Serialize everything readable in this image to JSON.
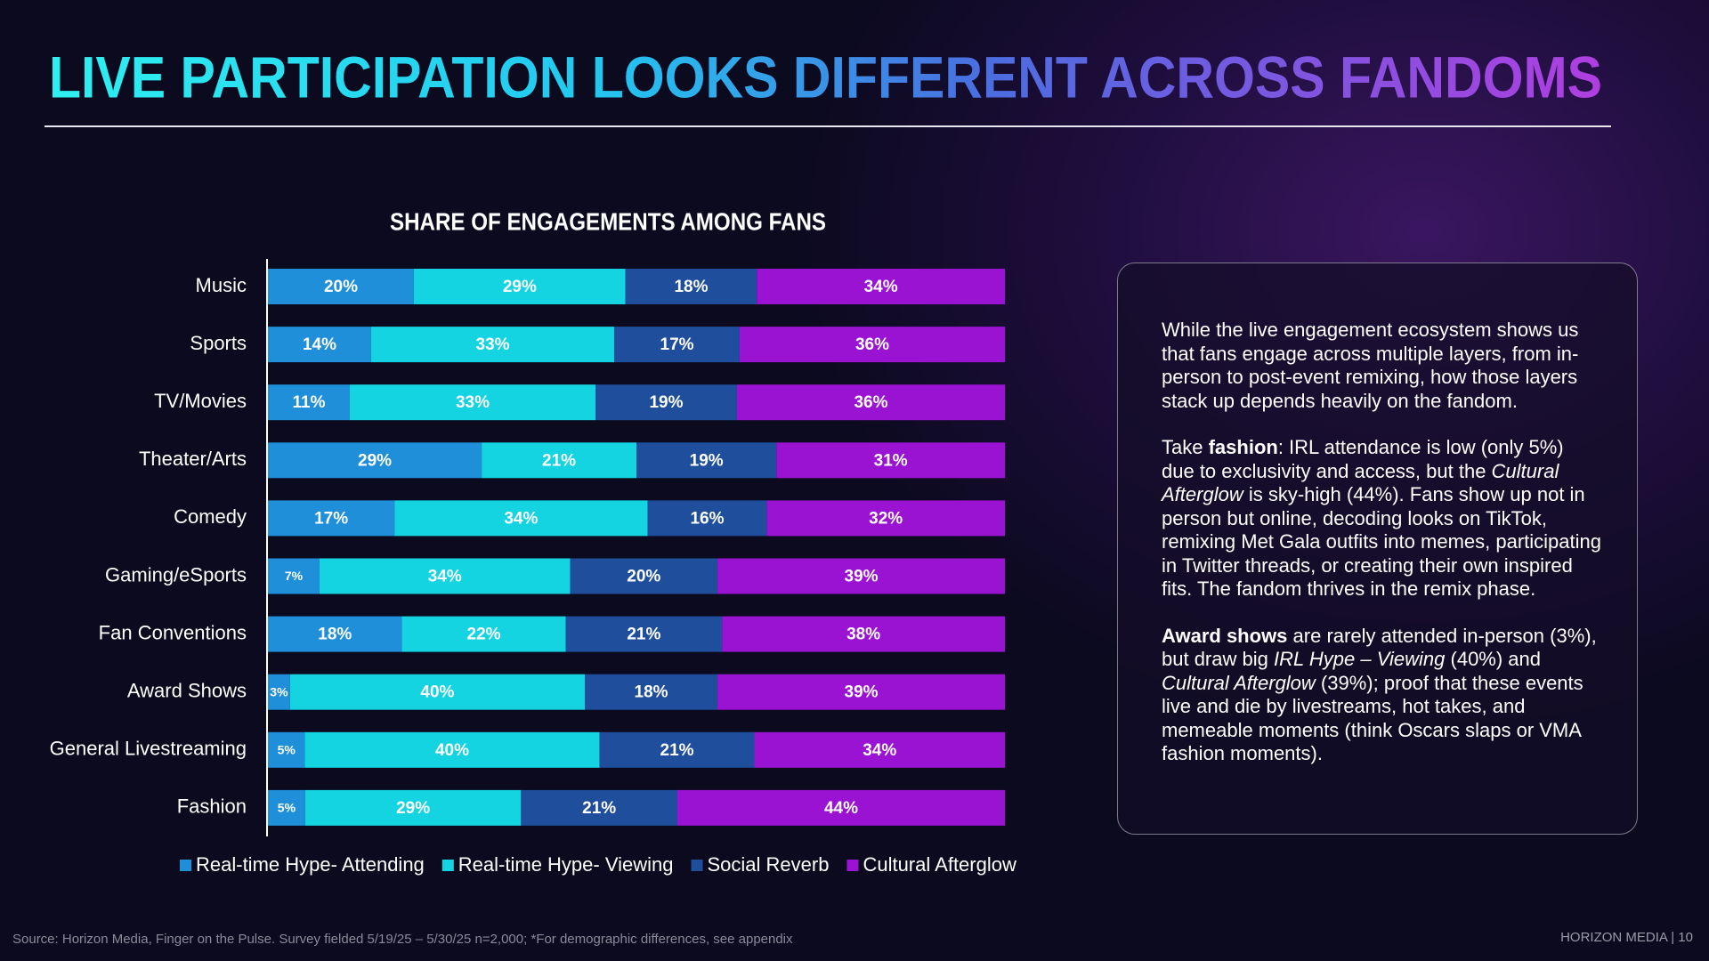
{
  "title": "LIVE PARTICIPATION LOOKS DIFFERENT ACROSS FANDOMS",
  "chart_data": {
    "type": "stacked-bar-horizontal",
    "title": "SHARE OF ENGAGEMENTS AMONG FANS",
    "categories": [
      "Music",
      "Sports",
      "TV/Movies",
      "Theater/Arts",
      "Comedy",
      "Gaming/eSports",
      "Fan Conventions",
      "Award Shows",
      "General Livestreaming",
      "Fashion"
    ],
    "series": [
      {
        "name": "Real-time Hype- Attending",
        "color": "#1f8fd9",
        "values": [
          20,
          14,
          11,
          29,
          17,
          7,
          18,
          3,
          5,
          5
        ],
        "value_labels": [
          "20%",
          "14%",
          "11%",
          "29%",
          "17%",
          "7%",
          "18%",
          "3%",
          "5%",
          "5%"
        ]
      },
      {
        "name": "Real-time Hype- Viewing",
        "color": "#14d4e2",
        "values": [
          29,
          33,
          33,
          21,
          34,
          34,
          22,
          40,
          40,
          29
        ],
        "value_labels": [
          "29%",
          "33%",
          "33%",
          "21%",
          "34%",
          "34%",
          "22%",
          "40%",
          "40%",
          "29%"
        ]
      },
      {
        "name": "Social Reverb",
        "color": "#1f4f9c",
        "values": [
          18,
          17,
          19,
          19,
          16,
          20,
          21,
          18,
          21,
          21
        ],
        "value_labels": [
          "18%",
          "17%",
          "19%",
          "19%",
          "16%",
          "20%",
          "21%",
          "18%",
          "21%",
          "21%"
        ]
      },
      {
        "name": "Cultural Afterglow",
        "color": "#9a12d2",
        "values": [
          34,
          36,
          36,
          31,
          32,
          39,
          38,
          39,
          34,
          44
        ],
        "value_labels": [
          "34%",
          "36%",
          "36%",
          "31%",
          "32%",
          "39%",
          "38%",
          "39%",
          "34%",
          "44%"
        ]
      }
    ]
  },
  "panel": {
    "paragraphs": [
      [
        "While the live engagement ecosystem shows us that fans engage across multiple layers, from in-person to post-event remixing, how those layers stack up depends heavily on the fandom."
      ],
      [
        "Take ",
        "fashion",
        ": IRL attendance is low (only 5%) due to exclusivity and access, but the ",
        "Cultural Afterglow",
        " is sky-high (44%). Fans show up not in person but online, decoding looks on TikTok, remixing Met Gala outfits into memes, participating in Twitter threads, or creating their own inspired fits. The fandom thrives in the remix phase."
      ],
      [
        "Award shows",
        " are rarely attended in-person (3%), but draw big ",
        "IRL Hype – Viewing",
        " (40%) and ",
        "Cultural Afterglow",
        " (39%); proof that these events live and die by livestreams, hot takes, and memeable moments (think Oscars slaps or VMA fashion moments)."
      ]
    ]
  },
  "footer": "Source: Horizon Media, Finger on the Pulse. Survey fielded 5/19/25 – 5/30/25 n=2,000; *For demographic differences, see appendix",
  "page_number": "HORIZON MEDIA | 10"
}
